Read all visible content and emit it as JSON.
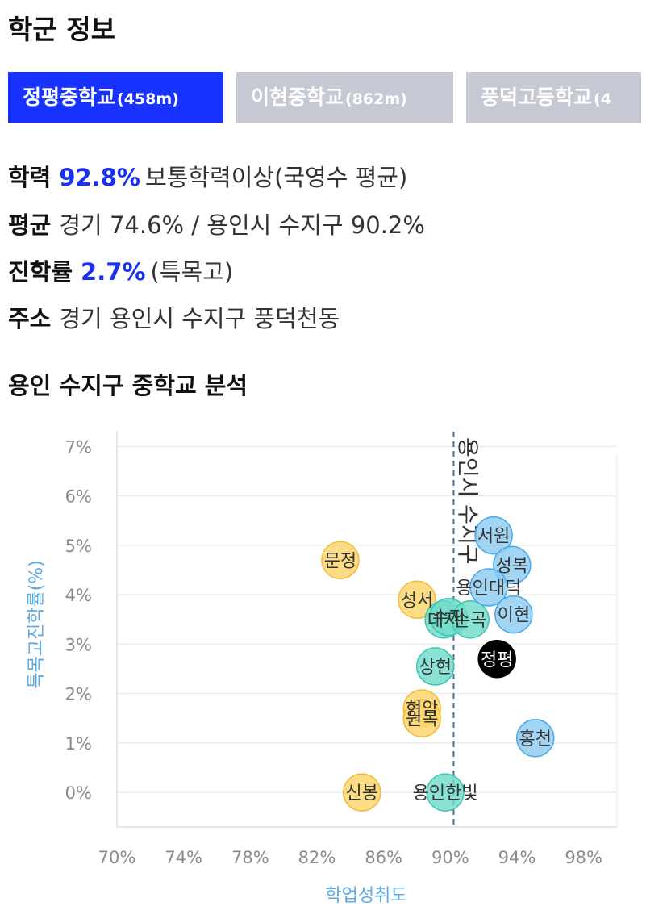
{
  "page": {
    "title": "학군 정보"
  },
  "tabs": [
    {
      "name": "정평중학교",
      "distance": "(458m)",
      "active": true
    },
    {
      "name": "이현중학교",
      "distance": "(862m)",
      "active": false
    },
    {
      "name": "풍덕고등학교",
      "distance": "(4",
      "active": false
    }
  ],
  "info": {
    "achievement": {
      "label": "학력",
      "value": "92.8%",
      "desc": "보통학력이상(국영수 평균)"
    },
    "average": {
      "label": "평균",
      "value": "경기 74.6% / 용인시 수지구 90.2%"
    },
    "advance": {
      "label": "진학률",
      "value": "2.7%",
      "desc": "(특목고)"
    },
    "address": {
      "label": "주소",
      "value": "경기 용인시 수지구 풍덕천동"
    }
  },
  "section_title": "용인 수지구 중학교 분석",
  "colors": {
    "accent": "#1832ff",
    "yellow": "#fbd46a",
    "teal": "#6fdccb",
    "blue": "#8ecaf2",
    "selected": "#000000",
    "axis_label": "#5aaae6"
  },
  "chart_data": {
    "type": "scatter",
    "xlabel": "학업성취도",
    "ylabel": "특목고진학률(%)",
    "xlim": [
      70,
      100
    ],
    "ylim": [
      -0.7,
      7.3
    ],
    "x_ticks": [
      "70%",
      "74%",
      "78%",
      "82%",
      "86%",
      "90%",
      "94%",
      "98%"
    ],
    "y_ticks": [
      "0%",
      "1%",
      "2%",
      "3%",
      "4%",
      "5%",
      "6%",
      "7%"
    ],
    "x_tick_values": [
      70,
      74,
      78,
      82,
      86,
      90,
      94,
      98
    ],
    "y_tick_values": [
      0,
      1,
      2,
      3,
      4,
      5,
      6,
      7
    ],
    "grid": true,
    "reference_line": {
      "x": 90.2,
      "label": "용인시 수지구"
    },
    "points": [
      {
        "name": "문정",
        "x": 83.4,
        "y": 4.7,
        "group": "yellow"
      },
      {
        "name": "성서",
        "x": 88.0,
        "y": 3.9,
        "group": "yellow"
      },
      {
        "name": "현암",
        "x": 88.3,
        "y": 1.7,
        "group": "yellow"
      },
      {
        "name": "원복",
        "x": 88.3,
        "y": 1.5,
        "group": "yellow"
      },
      {
        "name": "신봉",
        "x": 84.7,
        "y": 0.0,
        "group": "yellow"
      },
      {
        "name": "대지",
        "x": 89.6,
        "y": 3.5,
        "group": "teal"
      },
      {
        "name": "수지",
        "x": 89.9,
        "y": 3.55,
        "group": "teal"
      },
      {
        "name": "손곡",
        "x": 91.2,
        "y": 3.5,
        "group": "teal"
      },
      {
        "name": "상현",
        "x": 89.1,
        "y": 2.55,
        "group": "teal"
      },
      {
        "name": "용인한빛",
        "x": 89.7,
        "y": 0.0,
        "group": "teal"
      },
      {
        "name": "서원",
        "x": 92.6,
        "y": 5.2,
        "group": "blue"
      },
      {
        "name": "성복",
        "x": 93.7,
        "y": 4.6,
        "group": "blue"
      },
      {
        "name": "용인대덕",
        "x": 92.3,
        "y": 4.15,
        "group": "blue"
      },
      {
        "name": "이현",
        "x": 93.8,
        "y": 3.6,
        "group": "blue"
      },
      {
        "name": "홍천",
        "x": 95.1,
        "y": 1.1,
        "group": "blue"
      },
      {
        "name": "정평",
        "x": 92.8,
        "y": 2.7,
        "group": "selected"
      }
    ]
  }
}
